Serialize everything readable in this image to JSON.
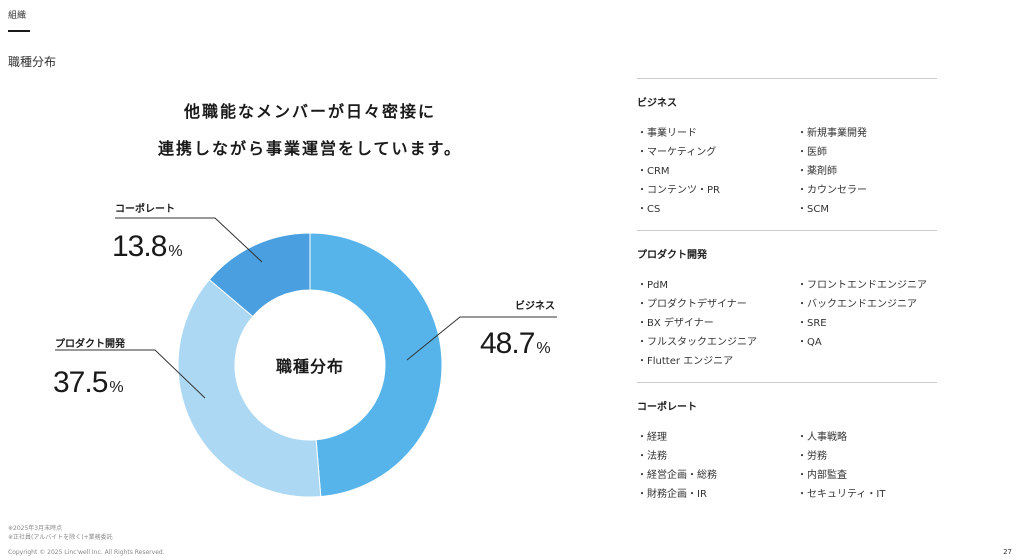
{
  "header": {
    "section": "組織",
    "page_title": "職種分布"
  },
  "headline": {
    "line1": "他職能なメンバーが日々密接に",
    "line2": "連携しながら事業運営をしています。"
  },
  "chart_data": {
    "type": "pie",
    "center_label": "職種分布",
    "unit": "%",
    "slices": [
      {
        "name": "ビジネス",
        "value": 48.7,
        "color": "#56b4ea"
      },
      {
        "name": "プロダクト開発",
        "value": 37.5,
        "color": "#acd8f3"
      },
      {
        "name": "コーポレート",
        "value": 13.8,
        "color": "#4a9fe0"
      }
    ]
  },
  "chart_labels": {
    "business": {
      "name": "ビジネス",
      "value": "48.7",
      "unit": "%"
    },
    "product": {
      "name": "プロダクト開発",
      "value": "37.5",
      "unit": "%"
    },
    "corporate": {
      "name": "コーポレート",
      "value": "13.8",
      "unit": "%"
    }
  },
  "categories": {
    "business": {
      "title": "ビジネス",
      "items": [
        "・事業リード",
        "・新規事業開発",
        "・マーケティング",
        "・医師",
        "・CRM",
        "・薬剤師",
        "・コンテンツ・PR",
        "・カウンセラー",
        "・CS",
        "・SCM"
      ]
    },
    "product": {
      "title": "プロダクト開発",
      "items": [
        "・PdM",
        "・フロントエンドエンジニア",
        "・プロダクトデザイナー",
        "・バックエンドエンジニア",
        "・BX デザイナー",
        "・SRE",
        "・フルスタックエンジニア",
        "・QA",
        "・Flutter エンジニア"
      ]
    },
    "corporate": {
      "title": "コーポレート",
      "items": [
        "・経理",
        "・人事戦略",
        "・法務",
        "・労務",
        "・経営企画・総務",
        "・内部監査",
        "・財務企画・IR",
        "・セキュリティ・IT"
      ]
    }
  },
  "footer": {
    "note1": "※2025年3月末時点",
    "note2": "※正社員(アルバイトを除く)+業務委託",
    "copyright": "Copyright © 2025 Linc'well Inc. All Rights Reserved.",
    "page_number": "27"
  },
  "colors": {
    "leader_line": "#333333",
    "divider": "#cccccc"
  }
}
